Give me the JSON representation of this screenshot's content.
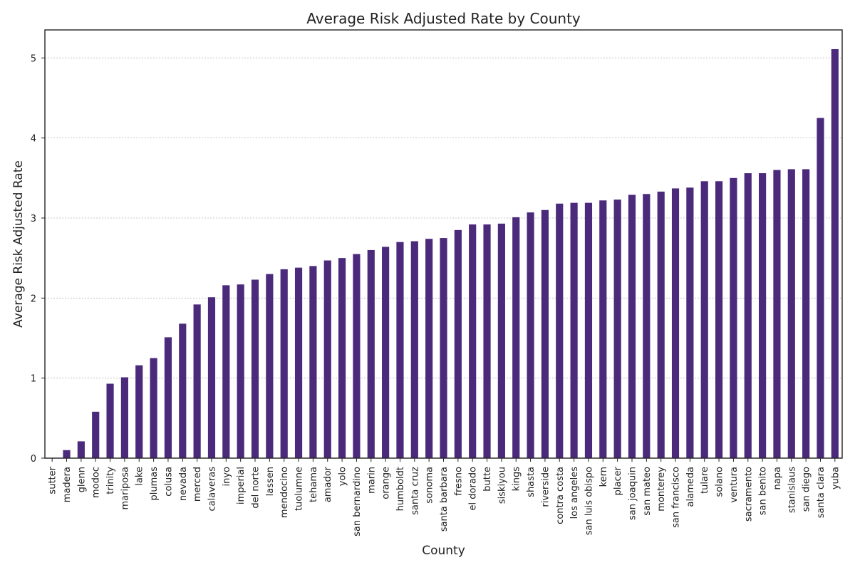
{
  "chart_data": {
    "type": "bar",
    "title": "Average Risk Adjusted Rate by County",
    "xlabel": "County",
    "ylabel": "Average Risk Adjusted Rate",
    "ylim": [
      0,
      5.35
    ],
    "yticks": [
      0,
      1,
      2,
      3,
      4,
      5
    ],
    "grid": "y-dashed",
    "bar_color": "#4b2a7b",
    "categories": [
      "sutter",
      "madera",
      "glenn",
      "modoc",
      "trinity",
      "mariposa",
      "lake",
      "plumas",
      "colusa",
      "nevada",
      "merced",
      "calaveras",
      "inyo",
      "imperial",
      "del norte",
      "lassen",
      "mendocino",
      "tuolumne",
      "tehama",
      "amador",
      "yolo",
      "san bernardino",
      "marin",
      "orange",
      "humboldt",
      "santa cruz",
      "sonoma",
      "santa barbara",
      "fresno",
      "el dorado",
      "butte",
      "siskiyou",
      "kings",
      "shasta",
      "riverside",
      "contra costa",
      "los angeles",
      "san luis obispo",
      "kern",
      "placer",
      "san joaquin",
      "san mateo",
      "monterey",
      "san francisco",
      "alameda",
      "tulare",
      "solano",
      "ventura",
      "sacramento",
      "san benito",
      "napa",
      "stanislaus",
      "san diego",
      "santa clara",
      "yuba"
    ],
    "values": [
      0.0,
      0.1,
      0.21,
      0.58,
      0.93,
      1.01,
      1.16,
      1.25,
      1.51,
      1.68,
      1.92,
      2.01,
      2.16,
      2.17,
      2.23,
      2.3,
      2.36,
      2.38,
      2.4,
      2.47,
      2.5,
      2.55,
      2.6,
      2.64,
      2.7,
      2.71,
      2.74,
      2.75,
      2.85,
      2.92,
      2.92,
      2.93,
      3.01,
      3.07,
      3.1,
      3.18,
      3.19,
      3.19,
      3.22,
      3.23,
      3.29,
      3.3,
      3.33,
      3.37,
      3.38,
      3.46,
      3.46,
      3.5,
      3.56,
      3.56,
      3.6,
      3.61,
      3.61,
      4.25,
      5.11
    ]
  }
}
